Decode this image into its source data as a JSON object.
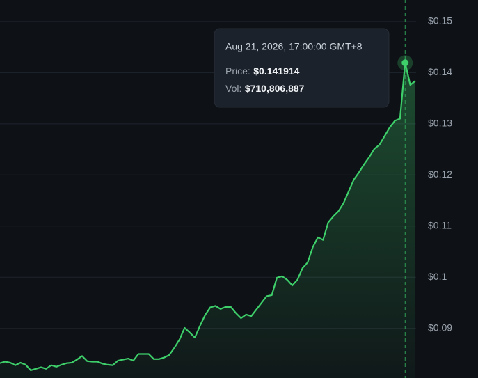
{
  "chart_data": {
    "type": "line",
    "color": "#3ecf6b",
    "grid": true,
    "ylim": [
      0.0803,
      0.1542
    ],
    "yticks": [
      {
        "value": 0.09,
        "label": "$0.09"
      },
      {
        "value": 0.1,
        "label": "$0.1"
      },
      {
        "value": 0.11,
        "label": "$0.11"
      },
      {
        "value": 0.12,
        "label": "$0.12"
      },
      {
        "value": 0.13,
        "label": "$0.13"
      },
      {
        "value": 0.14,
        "label": "$0.14"
      },
      {
        "value": 0.15,
        "label": "$0.15"
      }
    ],
    "values": [
      0.0832,
      0.0835,
      0.0833,
      0.0828,
      0.0833,
      0.0829,
      0.0818,
      0.0821,
      0.0824,
      0.0821,
      0.0828,
      0.0825,
      0.0829,
      0.0832,
      0.0833,
      0.0839,
      0.0846,
      0.0836,
      0.0835,
      0.0835,
      0.0831,
      0.0829,
      0.0828,
      0.0837,
      0.0839,
      0.0841,
      0.0837,
      0.085,
      0.085,
      0.085,
      0.084,
      0.084,
      0.0843,
      0.0848,
      0.0862,
      0.0878,
      0.0901,
      0.0892,
      0.0882,
      0.0905,
      0.0926,
      0.0941,
      0.0944,
      0.0938,
      0.0942,
      0.0942,
      0.093,
      0.092,
      0.0927,
      0.0924,
      0.0937,
      0.095,
      0.0963,
      0.0965,
      0.0999,
      0.1002,
      0.0995,
      0.0984,
      0.0995,
      0.1018,
      0.1029,
      0.1059,
      0.1078,
      0.1073,
      0.1107,
      0.1119,
      0.1129,
      0.1145,
      0.1168,
      0.1191,
      0.1205,
      0.1221,
      0.1235,
      0.1251,
      0.1259,
      0.1276,
      0.1293,
      0.1306,
      0.131,
      0.141914,
      0.1376,
      0.1384
    ],
    "tooltip": {
      "date": "Aug 21, 2026, 17:00:00 GMT+8",
      "price_key": "Price:",
      "price": "$0.141914",
      "vol_key": "Vol:",
      "vol": "$710,806,887"
    }
  }
}
